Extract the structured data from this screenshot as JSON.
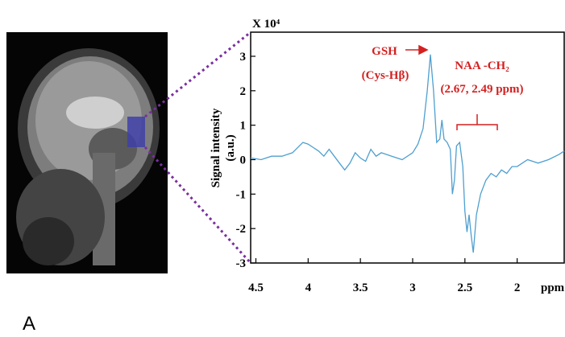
{
  "panel_label": "A",
  "chart_data": {
    "type": "line",
    "y_scale_label": "X 10⁴",
    "y_axis_label": [
      "Signal intensity",
      "(a.u.)"
    ],
    "x_axis_label": "ppm",
    "annotations": [
      "GSH",
      "(Cys-Hβ)",
      "NAA -CH₂",
      "(2.67, 2.49 ppm)"
    ],
    "x": [
      4.55,
      4.45,
      4.35,
      4.25,
      4.15,
      4.05,
      4.0,
      3.95,
      3.9,
      3.85,
      3.8,
      3.75,
      3.7,
      3.65,
      3.6,
      3.55,
      3.5,
      3.45,
      3.4,
      3.35,
      3.3,
      3.2,
      3.1,
      3.0,
      2.95,
      2.9,
      2.86,
      2.83,
      2.8,
      2.77,
      2.74,
      2.72,
      2.7,
      2.67,
      2.64,
      2.62,
      2.6,
      2.58,
      2.55,
      2.52,
      2.5,
      2.48,
      2.46,
      2.44,
      2.42,
      2.39,
      2.35,
      2.3,
      2.25,
      2.2,
      2.15,
      2.1,
      2.05,
      2.0,
      1.9,
      1.8,
      1.7,
      1.6,
      1.55
    ],
    "series": [
      {
        "color": "#4f9fd0",
        "values": [
          0.05,
          0.0,
          0.1,
          0.1,
          0.2,
          0.5,
          0.45,
          0.35,
          0.25,
          0.1,
          0.3,
          0.1,
          -0.1,
          -0.3,
          -0.1,
          0.2,
          0.05,
          -0.05,
          0.3,
          0.1,
          0.2,
          0.1,
          0.0,
          0.2,
          0.45,
          0.9,
          2.0,
          3.05,
          2.0,
          0.5,
          0.6,
          1.15,
          0.6,
          0.5,
          0.3,
          -1.0,
          -0.6,
          0.4,
          0.5,
          -0.2,
          -1.5,
          -2.1,
          -1.6,
          -2.2,
          -2.7,
          -1.6,
          -1.0,
          -0.6,
          -0.4,
          -0.5,
          -0.3,
          -0.4,
          -0.2,
          -0.2,
          0.0,
          -0.1,
          0.0,
          0.15,
          0.25
        ]
      }
    ],
    "xlim": [
      4.55,
      1.55
    ],
    "xticks": [
      4.5,
      4,
      3.5,
      3,
      2.5,
      2
    ],
    "ylim": [
      -3,
      3.7
    ],
    "yticks": [
      -3,
      -2,
      -1,
      0,
      1,
      2,
      3
    ]
  }
}
